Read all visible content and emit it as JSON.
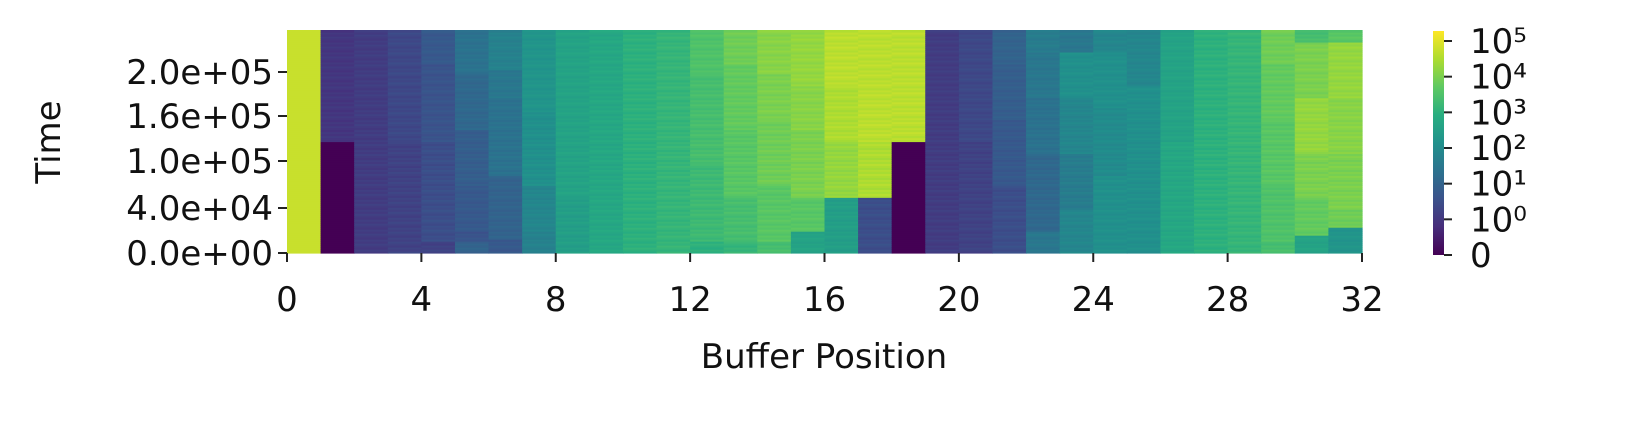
{
  "chart_data": {
    "type": "heatmap",
    "xlabel": "Buffer Position",
    "ylabel": "Time",
    "x_ticks": [
      "0",
      "4",
      "8",
      "12",
      "16",
      "20",
      "24",
      "28",
      "32"
    ],
    "y_ticks": [
      "0.0e+00",
      "4.0e+04",
      "1.0e+05",
      "1.6e+05",
      "2.0e+05"
    ],
    "colorbar": {
      "scale": "symlog",
      "colormap": "viridis",
      "ticks": [
        "0",
        "10⁰",
        "10¹",
        "10²",
        "10³",
        "10⁴",
        "10⁵"
      ]
    },
    "x_range": [
      0,
      32
    ],
    "columns": [
      {
        "pos": 0,
        "steps": [
          [
            0.0,
            4.6
          ]
        ],
        "low": 0,
        "high": 0
      },
      {
        "pos": 1,
        "steps": [
          [
            0.0,
            0.0
          ],
          [
            0.5,
            0.8
          ]
        ],
        "low": 0.3,
        "high": 0.8
      },
      {
        "pos": 2,
        "steps": [
          [
            0.0,
            0.9
          ]
        ],
        "low": 0.6,
        "high": 1.0
      },
      {
        "pos": 3,
        "steps": [
          [
            0.0,
            1.0
          ],
          [
            0.5,
            1.1
          ]
        ],
        "low": 0.8,
        "high": 1.2
      },
      {
        "pos": 4,
        "steps": [
          [
            0.0,
            1.0
          ],
          [
            0.05,
            1.2
          ],
          [
            0.5,
            1.3
          ],
          [
            0.85,
            1.4
          ]
        ],
        "low": 0.9,
        "high": 1.4
      },
      {
        "pos": 5,
        "steps": [
          [
            0.0,
            1.6
          ],
          [
            0.05,
            1.3
          ],
          [
            0.1,
            1.4
          ],
          [
            0.3,
            1.5
          ],
          [
            0.55,
            1.7
          ],
          [
            0.8,
            1.9
          ]
        ],
        "low": 1.5,
        "high": 1.9
      },
      {
        "pos": 6,
        "steps": [
          [
            0.0,
            1.4
          ],
          [
            0.06,
            1.6
          ],
          [
            0.35,
            1.9
          ],
          [
            0.7,
            2.0
          ],
          [
            0.82,
            2.2
          ]
        ],
        "low": 1.7,
        "high": 2.2
      },
      {
        "pos": 7,
        "steps": [
          [
            0.0,
            2.2
          ],
          [
            0.1,
            2.3
          ],
          [
            0.3,
            2.5
          ],
          [
            0.63,
            2.6
          ]
        ],
        "low": 2.3,
        "high": 2.6
      },
      {
        "pos": 8,
        "steps": [
          [
            0.0,
            2.8
          ],
          [
            0.25,
            2.9
          ]
        ],
        "low": 2.7,
        "high": 2.9
      },
      {
        "pos": 9,
        "steps": [
          [
            0.0,
            3.0
          ],
          [
            0.5,
            3.0
          ],
          [
            0.5,
            3.0
          ]
        ],
        "low": 2.9,
        "high": 3.1
      },
      {
        "pos": 10,
        "steps": [
          [
            0.0,
            3.2
          ]
        ],
        "low": 3.1,
        "high": 3.2
      },
      {
        "pos": 11,
        "steps": [
          [
            0.0,
            3.3
          ]
        ],
        "low": 3.2,
        "high": 3.4
      },
      {
        "pos": 12,
        "steps": [
          [
            0.0,
            3.2
          ],
          [
            0.05,
            3.4
          ],
          [
            0.4,
            3.5
          ],
          [
            0.8,
            3.6
          ]
        ],
        "low": 3.3,
        "high": 3.6
      },
      {
        "pos": 13,
        "steps": [
          [
            0.0,
            3.3
          ],
          [
            0.05,
            3.5
          ],
          [
            0.25,
            3.7
          ],
          [
            0.55,
            3.8
          ],
          [
            0.85,
            3.9
          ]
        ],
        "low": 3.5,
        "high": 3.9
      },
      {
        "pos": 14,
        "steps": [
          [
            0.0,
            3.5
          ],
          [
            0.05,
            3.7
          ],
          [
            0.3,
            3.9
          ],
          [
            0.6,
            4.0
          ],
          [
            0.8,
            4.1
          ]
        ],
        "low": 3.6,
        "high": 4.1
      },
      {
        "pos": 15,
        "steps": [
          [
            0.0,
            2.9
          ],
          [
            0.1,
            3.7
          ],
          [
            0.25,
            4.0
          ],
          [
            0.55,
            4.1
          ],
          [
            0.75,
            4.2
          ]
        ],
        "low": 3.7,
        "high": 4.2
      },
      {
        "pos": 16,
        "steps": [
          [
            0.0,
            2.8
          ],
          [
            0.25,
            4.2
          ],
          [
            0.5,
            4.4
          ],
          [
            0.75,
            4.5
          ]
        ],
        "low": 4.1,
        "high": 4.5
      },
      {
        "pos": 17,
        "steps": [
          [
            0.0,
            1.2
          ],
          [
            0.25,
            4.4
          ],
          [
            0.5,
            4.5
          ]
        ],
        "low": 4.3,
        "high": 4.6
      },
      {
        "pos": 18,
        "steps": [
          [
            0.0,
            0.0
          ],
          [
            0.5,
            4.5
          ]
        ],
        "low": 0.2,
        "high": 4.6
      },
      {
        "pos": 19,
        "steps": [
          [
            0.0,
            0.9
          ]
        ],
        "low": 0.5,
        "high": 1.0
      },
      {
        "pos": 20,
        "steps": [
          [
            0.0,
            1.0
          ],
          [
            0.5,
            1.1
          ]
        ],
        "low": 0.8,
        "high": 1.2
      },
      {
        "pos": 21,
        "steps": [
          [
            0.0,
            1.2
          ],
          [
            0.3,
            1.4
          ],
          [
            0.6,
            1.5
          ],
          [
            0.85,
            1.6
          ]
        ],
        "low": 1.0,
        "high": 1.6
      },
      {
        "pos": 22,
        "steps": [
          [
            0.0,
            2.0
          ],
          [
            0.1,
            1.7
          ],
          [
            0.45,
            1.9
          ],
          [
            0.7,
            2.0
          ],
          [
            0.9,
            2.1
          ]
        ],
        "low": 1.6,
        "high": 2.1
      },
      {
        "pos": 23,
        "steps": [
          [
            0.0,
            2.3
          ],
          [
            0.2,
            2.1
          ],
          [
            0.45,
            2.3
          ],
          [
            0.7,
            2.5
          ],
          [
            0.9,
            2.0
          ]
        ],
        "low": 2.0,
        "high": 2.5
      },
      {
        "pos": 24,
        "steps": [
          [
            0.0,
            2.5
          ],
          [
            0.35,
            2.4
          ],
          [
            0.65,
            2.5
          ],
          [
            0.9,
            2.3
          ]
        ],
        "low": 2.3,
        "high": 2.6
      },
      {
        "pos": 25,
        "steps": [
          [
            0.0,
            2.5
          ],
          [
            0.75,
            2.3
          ]
        ],
        "low": 2.3,
        "high": 2.6
      },
      {
        "pos": 26,
        "steps": [
          [
            0.0,
            3.0
          ],
          [
            0.5,
            2.9
          ],
          [
            0.5,
            2.9
          ]
        ],
        "low": 2.8,
        "high": 3.1
      },
      {
        "pos": 27,
        "steps": [
          [
            0.0,
            3.2
          ]
        ],
        "low": 3.1,
        "high": 3.3
      },
      {
        "pos": 28,
        "steps": [
          [
            0.0,
            3.3
          ]
        ],
        "low": 3.2,
        "high": 3.4
      },
      {
        "pos": 29,
        "steps": [
          [
            0.0,
            3.5
          ],
          [
            0.05,
            3.6
          ],
          [
            0.3,
            3.7
          ],
          [
            0.6,
            3.8
          ],
          [
            0.85,
            3.9
          ]
        ],
        "low": 3.4,
        "high": 3.9
      },
      {
        "pos": 30,
        "steps": [
          [
            0.0,
            2.9
          ],
          [
            0.08,
            3.8
          ],
          [
            0.25,
            4.0
          ],
          [
            0.45,
            4.2
          ],
          [
            0.7,
            4.0
          ],
          [
            0.95,
            3.5
          ]
        ],
        "low": 3.6,
        "high": 4.2
      },
      {
        "pos": 31,
        "steps": [
          [
            0.0,
            2.6
          ],
          [
            0.12,
            3.9
          ],
          [
            0.2,
            4.0
          ],
          [
            0.45,
            4.1
          ],
          [
            0.7,
            4.2
          ],
          [
            0.95,
            3.7
          ]
        ],
        "low": 3.7,
        "high": 4.2
      }
    ]
  }
}
